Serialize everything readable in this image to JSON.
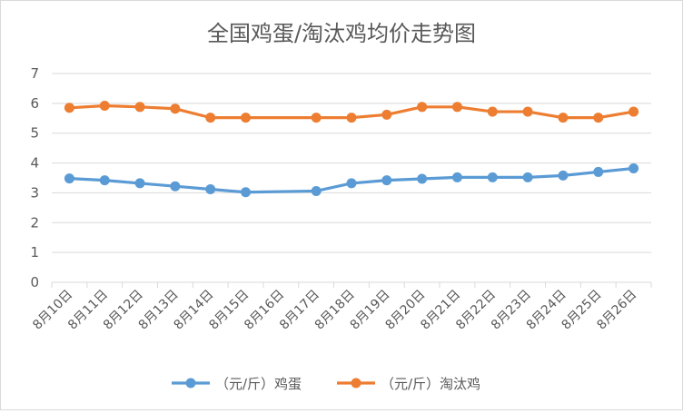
{
  "chart_data": {
    "type": "line",
    "title": "全国鸡蛋/淘汰鸡均价走势图",
    "xlabel": "",
    "ylabel": "",
    "categories": [
      "8月10日",
      "8月11日",
      "8月12日",
      "8月13日",
      "8月14日",
      "8月15日",
      "8月16日",
      "8月17日",
      "8月18日",
      "8月19日",
      "8月20日",
      "8月21日",
      "8月22日",
      "8月23日",
      "8月24日",
      "8月25日",
      "8月26日"
    ],
    "ylim": [
      0,
      7
    ],
    "yticks": [
      0,
      1,
      2,
      3,
      4,
      5,
      6,
      7
    ],
    "grid": true,
    "legend": "bottom",
    "series": [
      {
        "name": "（元/斤）鸡蛋",
        "color": "#5b9bd5",
        "points": [
          [
            "8月10日",
            3.48
          ],
          [
            "8月11日",
            3.42
          ],
          [
            "8月12日",
            3.32
          ],
          [
            "8月13日",
            3.22
          ],
          [
            "8月14日",
            3.12
          ],
          [
            "8月15日",
            3.02
          ],
          [
            "8月17日",
            3.06
          ],
          [
            "8月18日",
            3.32
          ],
          [
            "8月19日",
            3.42
          ],
          [
            "8月20日",
            3.47
          ],
          [
            "8月21日",
            3.52
          ],
          [
            "8月22日",
            3.52
          ],
          [
            "8月23日",
            3.52
          ],
          [
            "8月24日",
            3.58
          ],
          [
            "8月25日",
            3.7
          ],
          [
            "8月26日",
            3.82
          ]
        ]
      },
      {
        "name": "（元/斤）淘汰鸡",
        "color": "#ed7d31",
        "points": [
          [
            "8月10日",
            5.85
          ],
          [
            "8月11日",
            5.92
          ],
          [
            "8月12日",
            5.88
          ],
          [
            "8月13日",
            5.82
          ],
          [
            "8月14日",
            5.52
          ],
          [
            "8月15日",
            5.52
          ],
          [
            "8月17日",
            5.52
          ],
          [
            "8月18日",
            5.52
          ],
          [
            "8月19日",
            5.62
          ],
          [
            "8月20日",
            5.88
          ],
          [
            "8月21日",
            5.88
          ],
          [
            "8月22日",
            5.72
          ],
          [
            "8月23日",
            5.72
          ],
          [
            "8月24日",
            5.52
          ],
          [
            "8月25日",
            5.52
          ],
          [
            "8月26日",
            5.72
          ]
        ]
      }
    ]
  }
}
